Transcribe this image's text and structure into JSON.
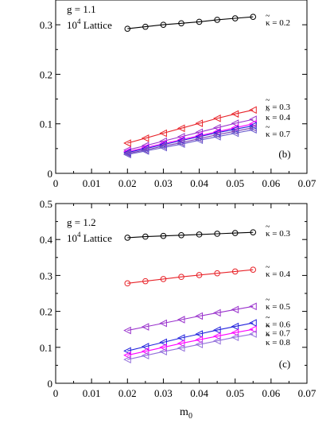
{
  "figure": {
    "shared_xlabel": "m",
    "shared_xlabel_sub": "0"
  },
  "chart_data": [
    {
      "type": "line",
      "panel_tag": "(b)",
      "annotations": [
        "g = 1.1",
        "10",
        "4",
        "Lattice"
      ],
      "xlabel": "",
      "ylabel": "",
      "xlim": [
        0,
        0.07
      ],
      "ylim": [
        0,
        0.35
      ],
      "grid": false,
      "legend": "none",
      "xticks": [
        "0",
        "0.01",
        "0.02",
        "0.03",
        "0.04",
        "0.05",
        "0.06",
        "0.07"
      ],
      "yticks": [
        "0",
        "0.1",
        "0.2",
        "0.3"
      ],
      "x": [
        0.02,
        0.025,
        0.03,
        0.035,
        0.04,
        0.045,
        0.05,
        0.055
      ],
      "series": [
        {
          "kappa": "0.2",
          "label": "κ = 0.2",
          "label_y": 0.305,
          "marker": "circle",
          "color": "#000000",
          "values": [
            0.292,
            0.296,
            0.3,
            0.303,
            0.306,
            0.31,
            0.313,
            0.316
          ]
        },
        {
          "kappa": "0.3",
          "label": "κ = 0.3",
          "label_y": 0.135,
          "marker": "triangle-left",
          "color": "#e8242a",
          "values": [
            0.061,
            0.071,
            0.081,
            0.091,
            0.101,
            0.111,
            0.12,
            0.128
          ]
        },
        {
          "kappa": "0.4",
          "label": "κ = 0.4",
          "label_y": 0.114,
          "marker": "triangle-left",
          "color": "#9932cc",
          "values": [
            0.047,
            0.056,
            0.065,
            0.074,
            0.083,
            0.092,
            0.101,
            0.109
          ]
        },
        {
          "kappa": "0.5",
          "label": "",
          "marker": "triangle-left",
          "color": "#ff00ff",
          "values": [
            0.044,
            0.052,
            0.06,
            0.068,
            0.076,
            0.084,
            0.092,
            0.1
          ]
        },
        {
          "kappa": "0.6",
          "label": "",
          "marker": "triangle-left",
          "color": "#2222dd",
          "values": [
            0.042,
            0.05,
            0.058,
            0.066,
            0.074,
            0.082,
            0.089,
            0.096
          ]
        },
        {
          "kappa": "0.7",
          "label": "κ = 0.7",
          "label_y": 0.08,
          "marker": "triangle-left",
          "color": "#7b3fb5",
          "values": [
            0.04,
            0.047,
            0.055,
            0.062,
            0.07,
            0.078,
            0.085,
            0.092
          ]
        },
        {
          "kappa": "0.8",
          "label": "",
          "marker": "triangle-left",
          "color": "#6a5acd",
          "values": [
            0.038,
            0.045,
            0.052,
            0.059,
            0.067,
            0.074,
            0.081,
            0.088
          ]
        }
      ]
    },
    {
      "type": "line",
      "panel_tag": "(c)",
      "annotations": [
        "g = 1.2",
        "10",
        "4",
        "Lattice"
      ],
      "xlabel": "m",
      "ylabel": "",
      "xlim": [
        0,
        0.07
      ],
      "ylim": [
        0,
        0.5
      ],
      "grid": false,
      "legend": "none",
      "xticks": [
        "0",
        "0.01",
        "0.02",
        "0.03",
        "0.04",
        "0.05",
        "0.06",
        "0.07"
      ],
      "yticks": [
        "0",
        "0.1",
        "0.2",
        "0.3",
        "0.4",
        "0.5"
      ],
      "x": [
        0.02,
        0.025,
        0.03,
        0.035,
        0.04,
        0.045,
        0.05,
        0.055
      ],
      "series": [
        {
          "kappa": "0.3",
          "label": "κ = 0.3",
          "label_y": 0.418,
          "marker": "circle",
          "color": "#000000",
          "values": [
            0.405,
            0.408,
            0.41,
            0.412,
            0.414,
            0.416,
            0.418,
            0.42
          ]
        },
        {
          "kappa": "0.4",
          "label": "κ = 0.4",
          "label_y": 0.305,
          "marker": "circle",
          "color": "#e8242a",
          "values": [
            0.278,
            0.284,
            0.29,
            0.296,
            0.301,
            0.306,
            0.311,
            0.316
          ]
        },
        {
          "kappa": "0.5",
          "label": "κ = 0.5",
          "label_y": 0.215,
          "marker": "triangle-left",
          "color": "#9932cc",
          "values": [
            0.147,
            0.157,
            0.167,
            0.177,
            0.187,
            0.196,
            0.205,
            0.214
          ]
        },
        {
          "kappa": "0.6",
          "label": "κ = 0.6",
          "label_y": 0.165,
          "marker": "triangle-left",
          "color": "#2222dd",
          "values": [
            0.09,
            0.102,
            0.114,
            0.126,
            0.137,
            0.148,
            0.158,
            0.168
          ]
        },
        {
          "kappa": "0.7",
          "label": "κ = 0.7",
          "label_y": 0.14,
          "marker": "triangle-left",
          "color": "#ff00ff",
          "values": [
            0.078,
            0.089,
            0.1,
            0.111,
            0.121,
            0.131,
            0.141,
            0.15
          ]
        },
        {
          "kappa": "0.8",
          "label": "κ = 0.8",
          "label_y": 0.115,
          "marker": "triangle-left",
          "color": "#9370db",
          "values": [
            0.066,
            0.077,
            0.088,
            0.098,
            0.108,
            0.118,
            0.128,
            0.137
          ]
        }
      ]
    }
  ]
}
